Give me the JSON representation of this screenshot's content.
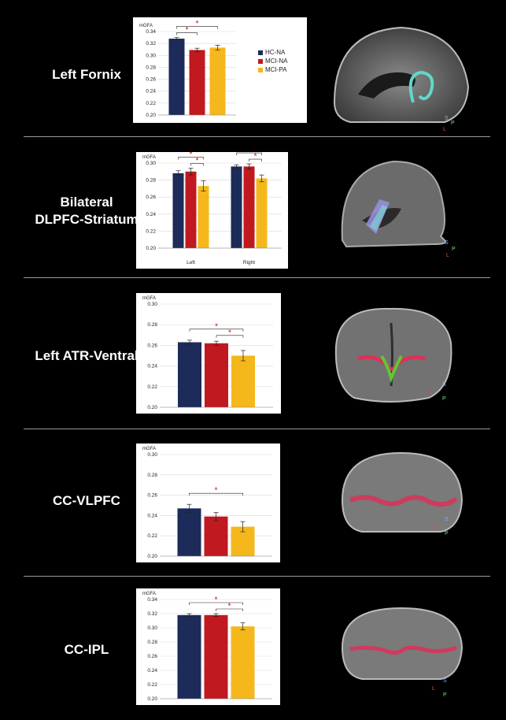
{
  "colors": {
    "hc": "#1c2b59",
    "mci_na": "#c0191f",
    "mci_pa": "#f4b71c",
    "star": "#e8412a"
  },
  "rows": [
    {
      "label": "Left Fornix"
    },
    {
      "label": "Bilateral\nDLPFC-Striatum"
    },
    {
      "label": "Left ATR-Ventral"
    },
    {
      "label": "CC-VLPFC"
    },
    {
      "label": "CC-IPL"
    }
  ],
  "legend": [
    "HC-NA",
    "MCI-NA",
    "MCI-PA"
  ],
  "orientation_labels": {
    "r0": [
      "S",
      "P",
      "L"
    ],
    "r1": [
      "S",
      "P",
      "L"
    ],
    "r2": [
      "S",
      "L",
      "P"
    ],
    "r3": [
      "S",
      "L",
      "P"
    ],
    "r4": [
      "S",
      "L",
      "P"
    ]
  },
  "chart_data": [
    {
      "type": "bar",
      "ylabel": "mGFA",
      "ylim": [
        0.2,
        0.34
      ],
      "yticks": [
        "0.20",
        "0.22",
        "0.24",
        "0.26",
        "0.28",
        "0.30",
        "0.32",
        "0.34"
      ],
      "categories": [
        ""
      ],
      "series": [
        {
          "name": "HC-NA",
          "values": [
            0.328
          ],
          "err": [
            0.002
          ]
        },
        {
          "name": "MCI-NA",
          "values": [
            0.309
          ],
          "err": [
            0.003
          ]
        },
        {
          "name": "MCI-PA",
          "values": [
            0.313
          ],
          "err": [
            0.004
          ]
        }
      ],
      "significance": [
        {
          "from": 0,
          "to": 1,
          "label": "*"
        },
        {
          "from": 0,
          "to": 2,
          "label": "*"
        }
      ]
    },
    {
      "type": "bar",
      "ylabel": "mGFA",
      "ylim": [
        0.2,
        0.3
      ],
      "yticks": [
        "0.20",
        "0.22",
        "0.24",
        "0.26",
        "0.28",
        "0.30"
      ],
      "categories": [
        "Left",
        "Right"
      ],
      "series": [
        {
          "name": "HC-NA",
          "values": [
            0.288,
            0.296
          ],
          "err": [
            0.003,
            0.002
          ]
        },
        {
          "name": "MCI-NA",
          "values": [
            0.29,
            0.296
          ],
          "err": [
            0.004,
            0.003
          ]
        },
        {
          "name": "MCI-PA",
          "values": [
            0.273,
            0.282
          ],
          "err": [
            0.006,
            0.004
          ]
        }
      ],
      "significance": [
        {
          "group": 0,
          "from": 0,
          "to": 2,
          "label": "*"
        },
        {
          "group": 0,
          "from": 1,
          "to": 2,
          "label": "*"
        },
        {
          "group": 1,
          "from": 0,
          "to": 2,
          "label": "*"
        },
        {
          "group": 1,
          "from": 1,
          "to": 2,
          "label": "*"
        }
      ]
    },
    {
      "type": "bar",
      "ylabel": "mGFA",
      "ylim": [
        0.2,
        0.3
      ],
      "yticks": [
        "0.20",
        "0.22",
        "0.24",
        "0.26",
        "0.28",
        "0.30"
      ],
      "categories": [
        ""
      ],
      "series": [
        {
          "name": "HC-NA",
          "values": [
            0.263
          ],
          "err": [
            0.002
          ]
        },
        {
          "name": "MCI-NA",
          "values": [
            0.262
          ],
          "err": [
            0.002
          ]
        },
        {
          "name": "MCI-PA",
          "values": [
            0.25
          ],
          "err": [
            0.005
          ]
        }
      ],
      "significance": [
        {
          "from": 0,
          "to": 2,
          "label": "*"
        },
        {
          "from": 1,
          "to": 2,
          "label": "*"
        }
      ]
    },
    {
      "type": "bar",
      "ylabel": "mGFA",
      "ylim": [
        0.2,
        0.3
      ],
      "yticks": [
        "0.20",
        "0.22",
        "0.24",
        "0.26",
        "0.28",
        "0.30"
      ],
      "categories": [
        ""
      ],
      "series": [
        {
          "name": "HC-NA",
          "values": [
            0.247
          ],
          "err": [
            0.004
          ]
        },
        {
          "name": "MCI-NA",
          "values": [
            0.239
          ],
          "err": [
            0.004
          ]
        },
        {
          "name": "MCI-PA",
          "values": [
            0.229
          ],
          "err": [
            0.005
          ]
        }
      ],
      "significance": [
        {
          "from": 0,
          "to": 2,
          "label": "*"
        }
      ]
    },
    {
      "type": "bar",
      "ylabel": "mGFA",
      "ylim": [
        0.2,
        0.34
      ],
      "yticks": [
        "0.20",
        "0.22",
        "0.24",
        "0.26",
        "0.28",
        "0.30",
        "0.32",
        "0.34"
      ],
      "categories": [
        ""
      ],
      "series": [
        {
          "name": "HC-NA",
          "values": [
            0.318
          ],
          "err": [
            0.002
          ]
        },
        {
          "name": "MCI-NA",
          "values": [
            0.318
          ],
          "err": [
            0.002
          ]
        },
        {
          "name": "MCI-PA",
          "values": [
            0.302
          ],
          "err": [
            0.005
          ]
        }
      ],
      "significance": [
        {
          "from": 0,
          "to": 2,
          "label": "*"
        },
        {
          "from": 1,
          "to": 2,
          "label": "*"
        }
      ]
    }
  ]
}
